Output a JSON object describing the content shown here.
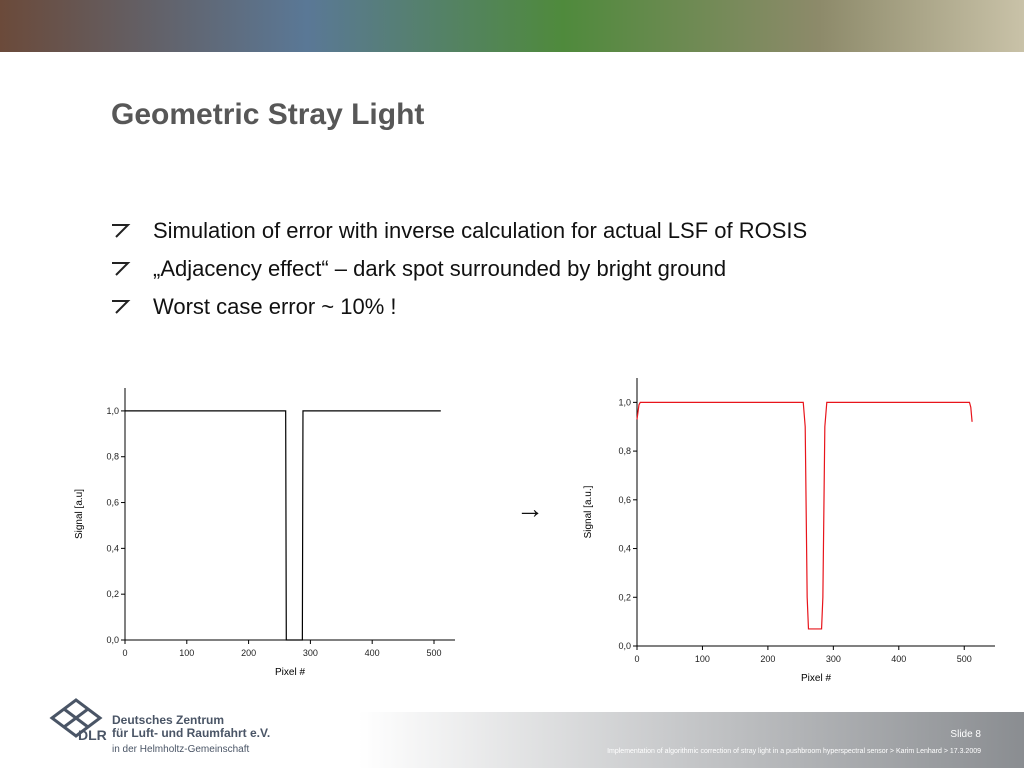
{
  "title": "Geometric Stray Light",
  "bullets": [
    "Simulation of error with inverse calculation for actual LSF of ROSIS",
    "„Adjacency effect“ – dark spot surrounded by bright ground",
    "Worst case error ~ 10% !"
  ],
  "arrow": "→",
  "chart_data": [
    {
      "type": "line",
      "xlabel": "Pixel #",
      "ylabel": "Signal [a.u]",
      "x": [
        0,
        260,
        261,
        287,
        288,
        511
      ],
      "series": [
        {
          "color": "#000000",
          "values": [
            1,
            1,
            0,
            0,
            1,
            1
          ]
        }
      ],
      "xlim": [
        0,
        534
      ],
      "xticks": [
        0,
        100,
        200,
        300,
        400,
        500
      ],
      "ylim": [
        0,
        1.1
      ],
      "yticks": [
        {
          "value": 0,
          "label": "0,0"
        },
        {
          "value": 0.2,
          "label": "0,2"
        },
        {
          "value": 0.4,
          "label": "0,4"
        },
        {
          "value": 0.6,
          "label": "0,6"
        },
        {
          "value": 0.8,
          "label": "0,8"
        },
        {
          "value": 1,
          "label": "1,0"
        }
      ]
    },
    {
      "type": "line",
      "xlabel": "Pixel #",
      "ylabel": "Signal [a.u.]",
      "x": [
        0,
        3,
        5,
        254,
        257,
        260,
        262,
        282,
        284,
        287,
        290,
        508,
        510,
        512
      ],
      "series": [
        {
          "color": "#e8141b",
          "values": [
            0.93,
            0.99,
            1,
            1,
            0.9,
            0.2,
            0.07,
            0.07,
            0.2,
            0.9,
            1,
            1,
            0.98,
            0.92
          ]
        }
      ],
      "xlim": [
        0,
        547
      ],
      "xticks": [
        0,
        100,
        200,
        300,
        400,
        500
      ],
      "ylim": [
        0,
        1.1
      ],
      "yticks": [
        {
          "value": 0,
          "label": "0,0"
        },
        {
          "value": 0.2,
          "label": "0,2"
        },
        {
          "value": 0.4,
          "label": "0,4"
        },
        {
          "value": 0.6,
          "label": "0,6"
        },
        {
          "value": 0.8,
          "label": "0,8"
        },
        {
          "value": 1,
          "label": "1,0"
        }
      ]
    }
  ],
  "footer": {
    "org_line1": "Deutsches Zentrum",
    "org_line2": "für Luft- und Raumfahrt e.V.",
    "org_line3": "in der Helmholtz-Gemeinschaft",
    "logo": "DLR",
    "slide": "Slide 8",
    "caption": "Implementation of algorithmic correction of stray light in a pushbroom hyperspectral sensor > Karim Lenhard > 17.3.2009"
  }
}
